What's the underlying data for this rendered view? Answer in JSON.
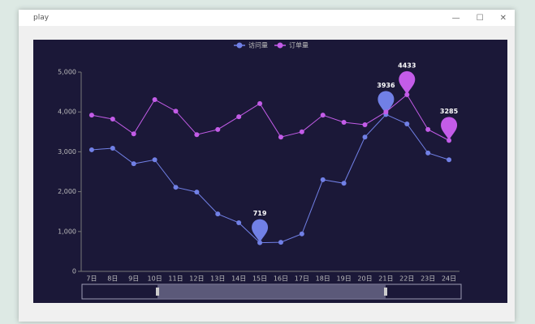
{
  "window": {
    "title": "play"
  },
  "chart_data": {
    "type": "line",
    "categories": [
      "7日",
      "8日",
      "9日",
      "10日",
      "11日",
      "12日",
      "13日",
      "14日",
      "15日",
      "16日",
      "17日",
      "18日",
      "19日",
      "20日",
      "21日",
      "22日",
      "23日",
      "24日"
    ],
    "series": [
      {
        "name": "访问量",
        "color": "#7180e6",
        "values": [
          3050,
          3090,
          2700,
          2800,
          2110,
          1990,
          1440,
          1220,
          719,
          730,
          940,
          2300,
          2210,
          3370,
          3936,
          3700,
          2970,
          2800
        ]
      },
      {
        "name": "订单量",
        "color": "#c35ce8",
        "values": [
          3920,
          3820,
          3450,
          4310,
          4020,
          3430,
          3560,
          3880,
          4210,
          3370,
          3500,
          3920,
          3740,
          3680,
          4000,
          4433,
          3560,
          3285
        ]
      }
    ],
    "ylim": [
      0,
      5000
    ],
    "yticks": [
      0,
      {
        "value": 1000,
        "label": "1,000"
      },
      {
        "value": 2000,
        "label": "2,000"
      },
      {
        "value": 3000,
        "label": "3,000"
      },
      {
        "value": 4000,
        "label": "4,000"
      },
      {
        "value": 5000,
        "label": "5,000"
      }
    ],
    "grid": false
  }
}
